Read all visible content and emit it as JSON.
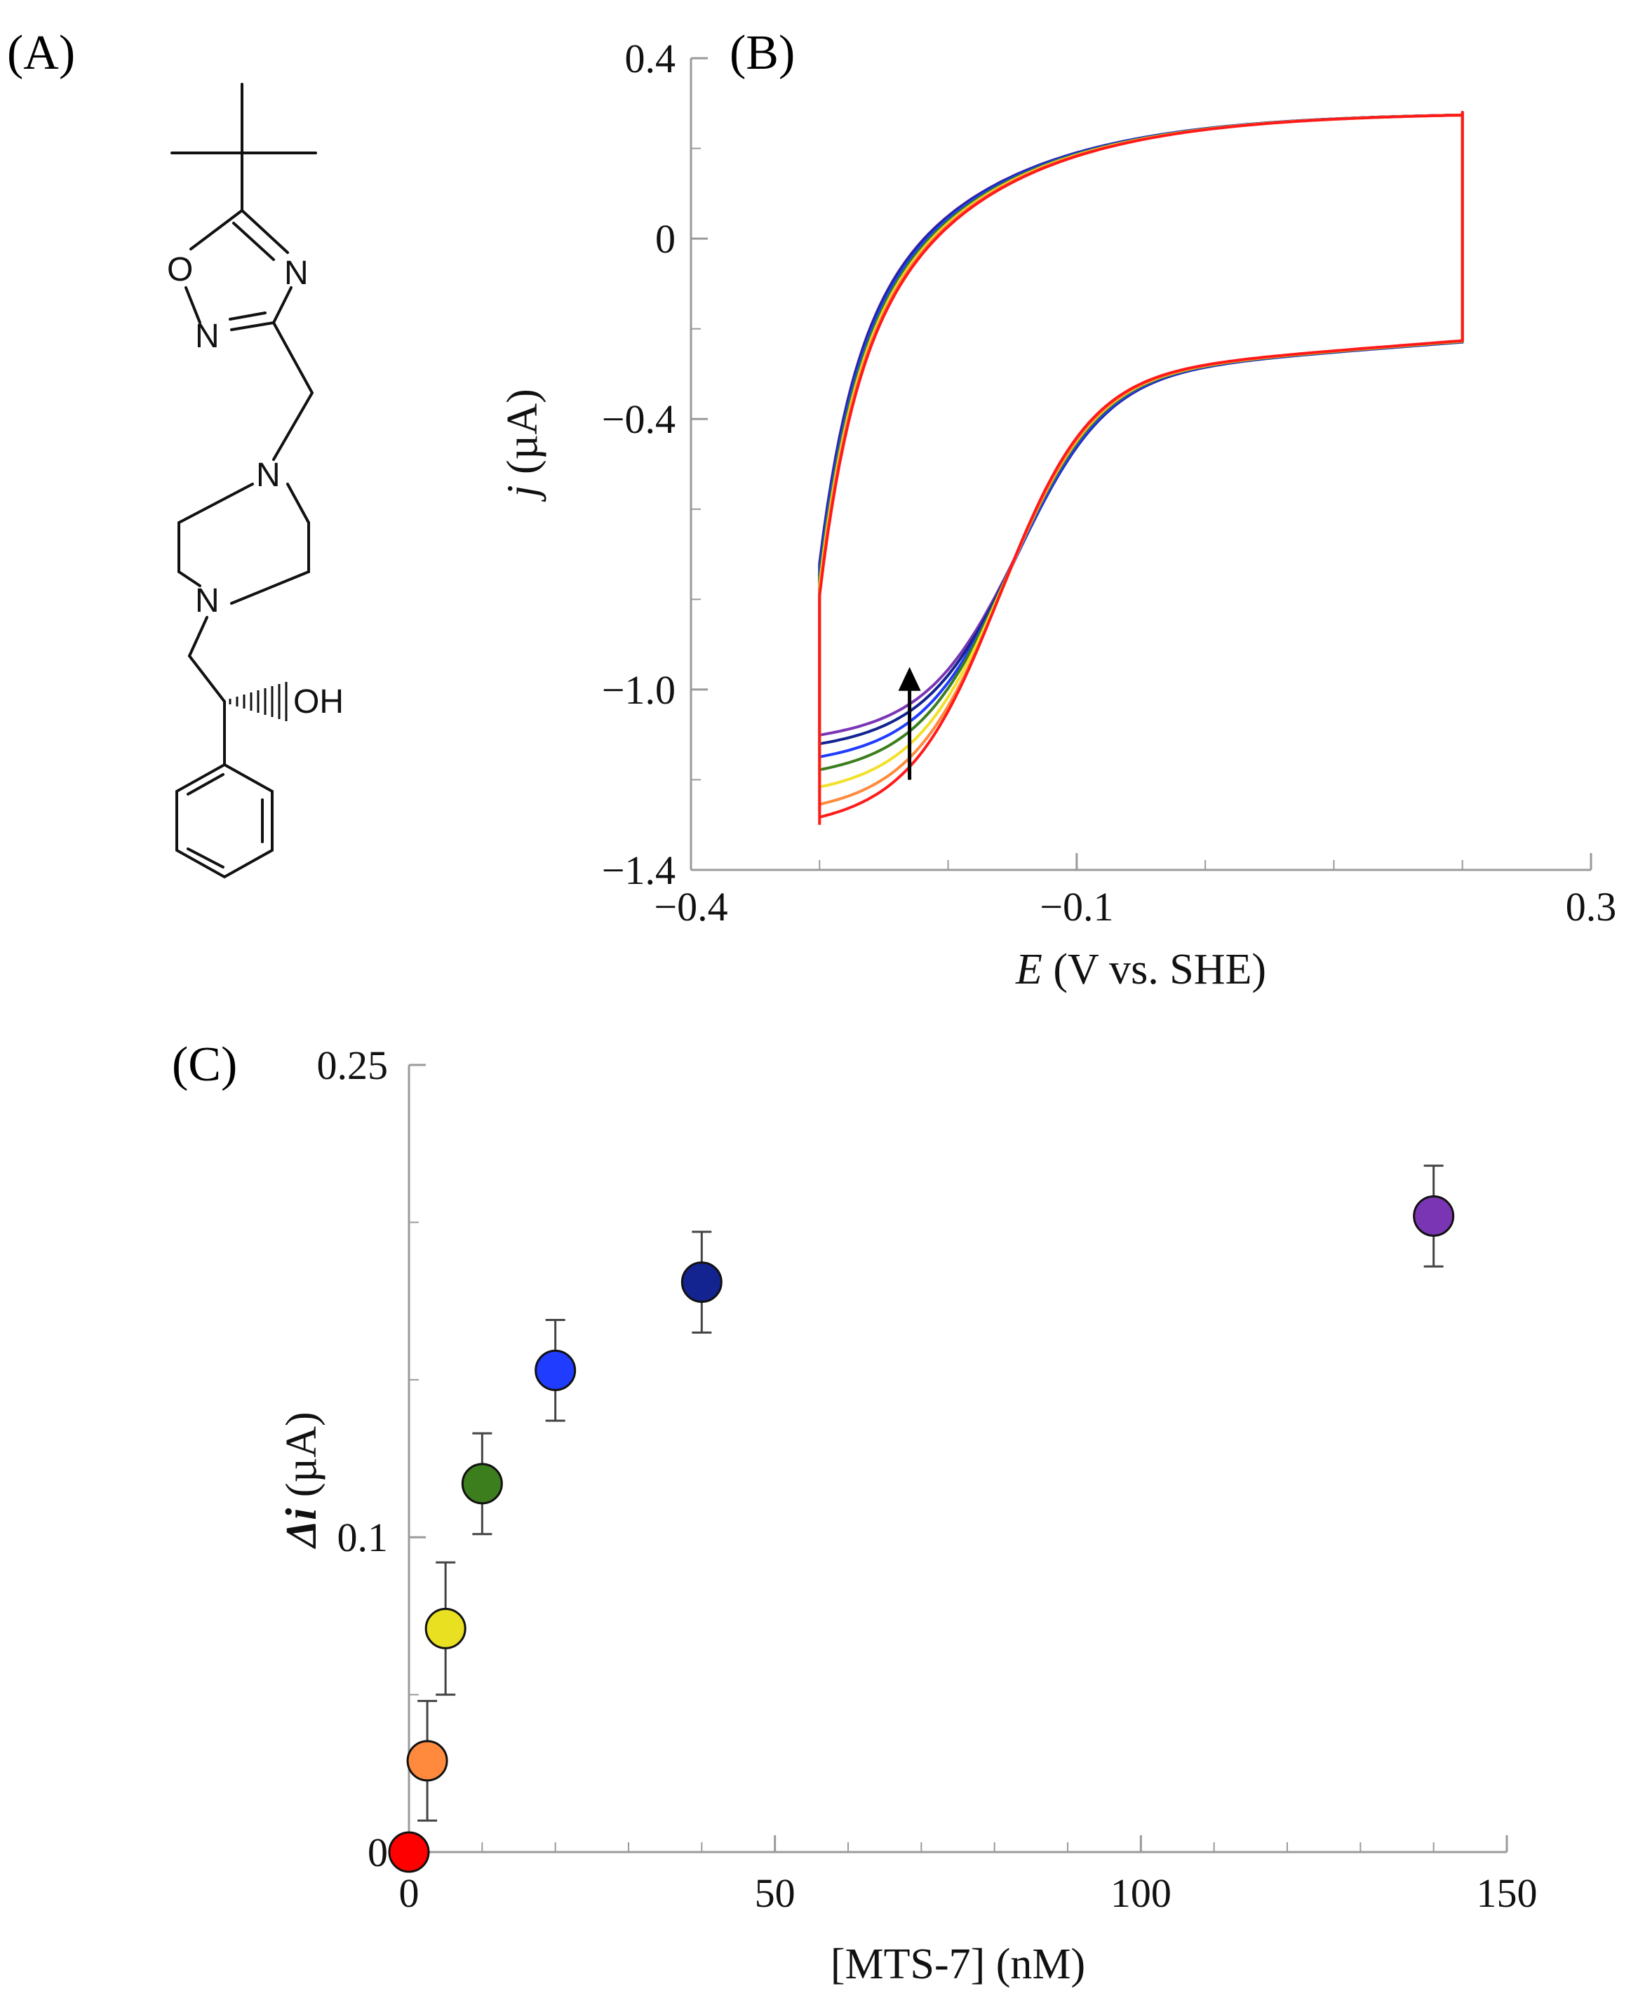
{
  "panels": {
    "a_label": "(A)",
    "b_label": "(B)",
    "c_label": "(C)"
  },
  "molecule": {
    "atom_o_ring": "O",
    "atom_n_ring_right": "N",
    "atom_n_ring_left": "N",
    "atom_n_pip_top": "N",
    "atom_n_pip_bottom": "N",
    "atom_oh": "OH"
  },
  "chart_data": [
    {
      "type": "line",
      "panel": "B",
      "title": "",
      "xlabel_italic": "E",
      "xlabel_rest": " (V vs. SHE)",
      "ylabel_italic": "j",
      "ylabel_rest": " (µA)",
      "xlim": [
        -0.4,
        0.3
      ],
      "ylim": [
        -1.4,
        0.4
      ],
      "xticks": [
        {
          "value": -0.4,
          "label": "−0.4"
        },
        {
          "value": -0.1,
          "label": "−0.1"
        },
        {
          "value": 0.3,
          "label": "0.3"
        }
      ],
      "yticks": [
        {
          "value": 0.4,
          "label": "0.4"
        },
        {
          "value": 0,
          "label": "0"
        },
        {
          "value": -0.4,
          "label": "−0.4"
        },
        {
          "value": -1.0,
          "label": "−1.0"
        },
        {
          "value": -1.4,
          "label": "−1.4"
        }
      ],
      "x_minor_step": 0.1,
      "y_minor_step": 0.2,
      "E_min": -0.3,
      "E_max": 0.2,
      "series": [
        {
          "name": "0 nM",
          "color": "#ff1a1a",
          "min_current": -1.3,
          "shift": 0.024
        },
        {
          "name": "2.5 nM",
          "color": "#ff8a3d",
          "min_current": -1.27,
          "shift": 0.02
        },
        {
          "name": "5 nM",
          "color": "#f2e02a",
          "min_current": -1.23,
          "shift": 0.016
        },
        {
          "name": "10 nM",
          "color": "#3c7d1e",
          "min_current": -1.19,
          "shift": 0.011
        },
        {
          "name": "20 nM",
          "color": "#1f3cff",
          "min_current": -1.16,
          "shift": 0.006
        },
        {
          "name": "40 nM",
          "color": "#13238f",
          "min_current": -1.13,
          "shift": 0.002
        },
        {
          "name": "140 nM",
          "color": "#7a35b5",
          "min_current": -1.11,
          "shift": 0.0
        }
      ],
      "annotation": {
        "type": "arrow",
        "x": -0.23,
        "y_from": -1.2,
        "y_to": -0.95
      }
    },
    {
      "type": "scatter",
      "panel": "C",
      "title": "",
      "xlabel": "[MTS-7] (nM)",
      "ylabel_italic": "Δi",
      "ylabel_rest": " (µA)",
      "xlim": [
        0,
        150
      ],
      "ylim": [
        0,
        0.25
      ],
      "xticks": [
        {
          "value": 0,
          "label": "0"
        },
        {
          "value": 50,
          "label": "50"
        },
        {
          "value": 100,
          "label": "100"
        },
        {
          "value": 150,
          "label": "150"
        }
      ],
      "yticks": [
        {
          "value": 0.25,
          "label": "0.25"
        },
        {
          "value": 0.1,
          "label": "0.1"
        },
        {
          "value": 0,
          "label": "0"
        }
      ],
      "x_minor_step": 10,
      "y_minor_step": 0.05,
      "points": [
        {
          "x": 0,
          "y": 0.0,
          "err": 0.0,
          "color": "#ff0000"
        },
        {
          "x": 2.5,
          "y": 0.029,
          "err": 0.019,
          "color": "#ff8a3d"
        },
        {
          "x": 5,
          "y": 0.071,
          "err": 0.021,
          "color": "#e8e020"
        },
        {
          "x": 10,
          "y": 0.117,
          "err": 0.016,
          "color": "#3c7d1e"
        },
        {
          "x": 20,
          "y": 0.153,
          "err": 0.016,
          "color": "#1f3cff"
        },
        {
          "x": 40,
          "y": 0.181,
          "err": 0.016,
          "color": "#13238f"
        },
        {
          "x": 140,
          "y": 0.202,
          "err": 0.016,
          "color": "#7a35b5"
        }
      ]
    }
  ]
}
